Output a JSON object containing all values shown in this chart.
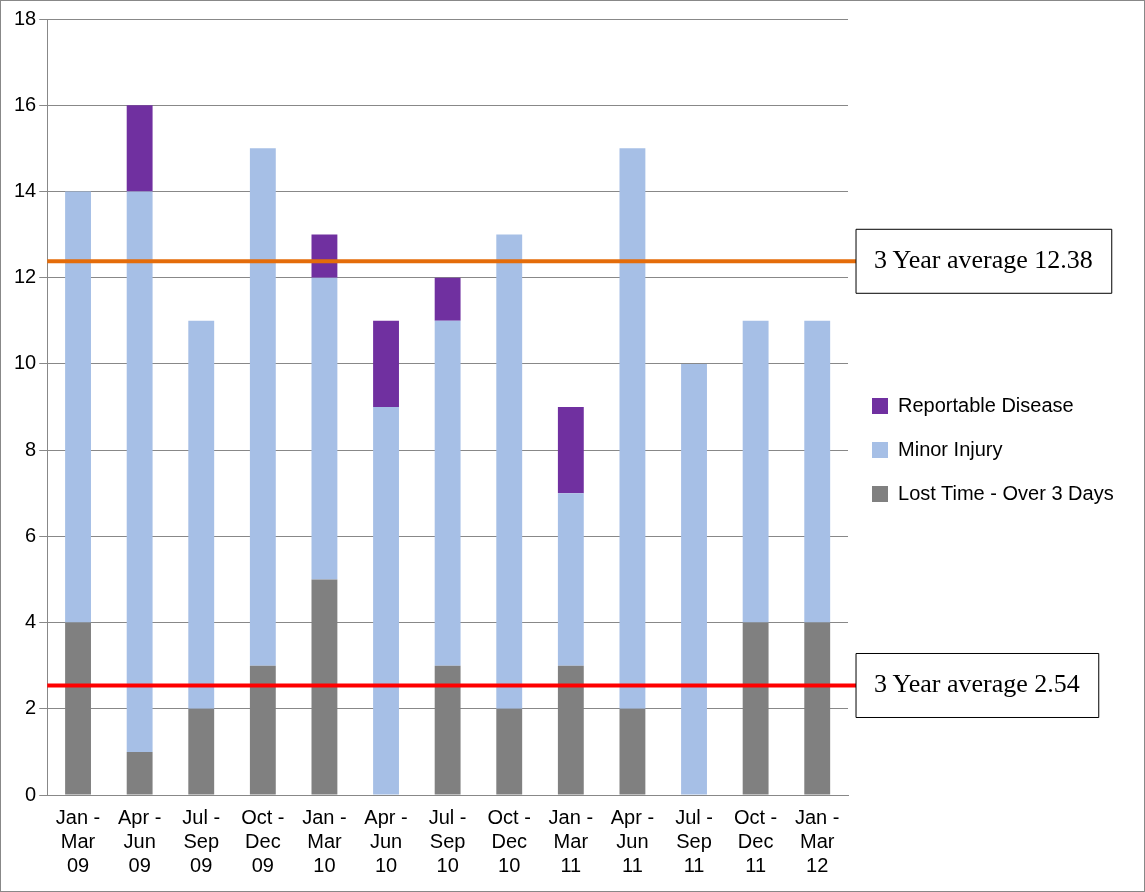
{
  "chart_data": {
    "type": "bar",
    "stacked": true,
    "categories": [
      "Jan - Mar 09",
      "Apr - Jun 09",
      "Jul - Sep 09",
      "Oct - Dec 09",
      "Jan - Mar 10",
      "Apr - Jun 10",
      "Jul - Sep 10",
      "Oct - Dec 10",
      "Jan - Mar 11",
      "Apr - Jun 11",
      "Jul - Sep 11",
      "Oct - Dec 11",
      "Jan - Mar 12"
    ],
    "series": [
      {
        "name": "Lost Time - Over 3 Days",
        "color": "#808080",
        "values": [
          4,
          1,
          2,
          3,
          5,
          0,
          3,
          2,
          3,
          2,
          0,
          4,
          4
        ]
      },
      {
        "name": "Minor Injury",
        "color": "#a6bfe6",
        "values": [
          10,
          13,
          9,
          12,
          7,
          9,
          8,
          11,
          4,
          13,
          10,
          7,
          7
        ]
      },
      {
        "name": "Reportable Disease",
        "color": "#7030a0",
        "values": [
          0,
          2,
          0,
          0,
          1,
          2,
          1,
          0,
          2,
          0,
          0,
          0,
          0
        ]
      }
    ],
    "ylim": [
      0,
      18
    ],
    "yticks": [
      0,
      2,
      4,
      6,
      8,
      10,
      12,
      14,
      16,
      18
    ],
    "grid": "y",
    "legend": "right",
    "ref_lines": [
      {
        "axis": "y",
        "value": 12.38,
        "label": "3 Year average 12.38",
        "color": "#e46c0a"
      },
      {
        "axis": "y",
        "value": 2.54,
        "label": "3 Year average 2.54",
        "color": "#ff0000"
      }
    ]
  }
}
